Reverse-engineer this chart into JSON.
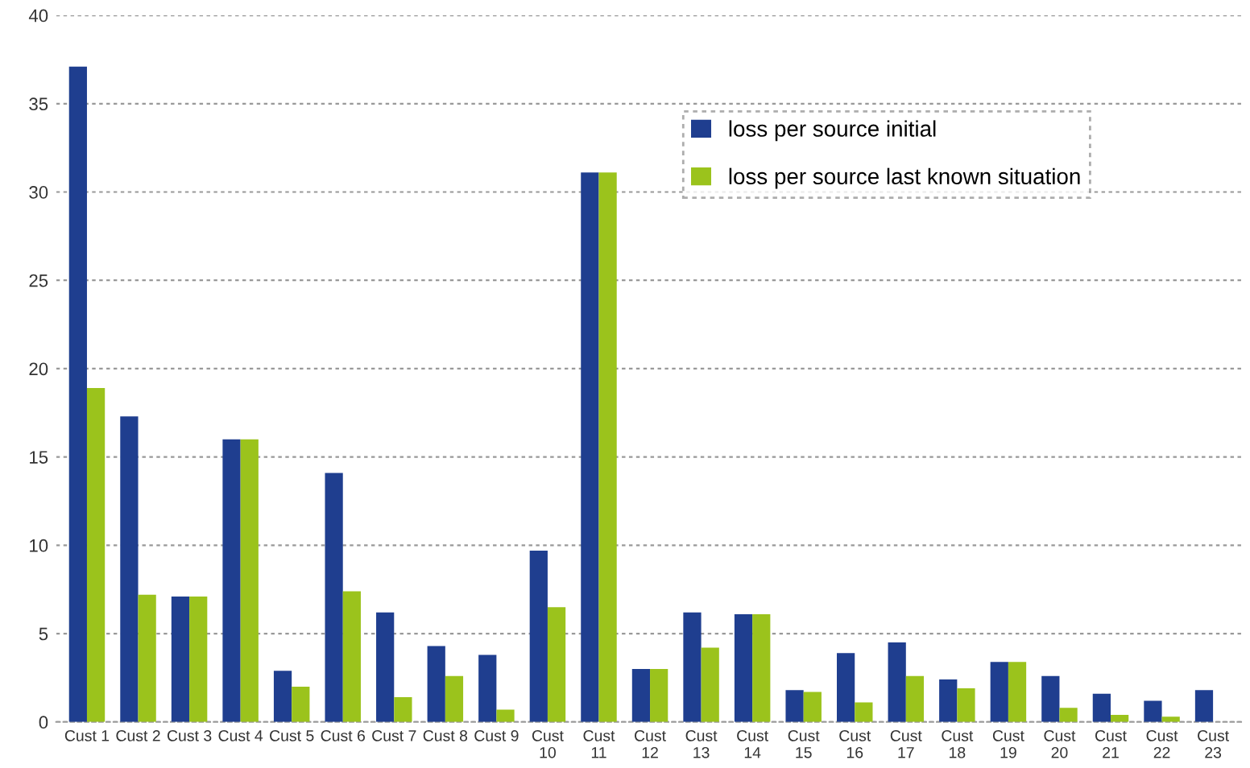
{
  "chart_data": {
    "type": "bar",
    "categories": [
      "Cust 1",
      "Cust 2",
      "Cust 3",
      "Cust 4",
      "Cust 5",
      "Cust 6",
      "Cust 7",
      "Cust 8",
      "Cust 9",
      "Cust 10",
      "Cust 11",
      "Cust 12",
      "Cust 13",
      "Cust 14",
      "Cust 15",
      "Cust 16",
      "Cust 17",
      "Cust 18",
      "Cust 19",
      "Cust 20",
      "Cust 21",
      "Cust 22",
      "Cust 23"
    ],
    "series": [
      {
        "name": "loss per source initial",
        "color": "#1f3e8f",
        "values": [
          37.1,
          17.3,
          7.1,
          16,
          2.9,
          14.1,
          6.2,
          4.3,
          3.8,
          9.7,
          31.1,
          3.0,
          6.2,
          6.1,
          1.8,
          3.9,
          4.5,
          2.4,
          3.4,
          2.6,
          1.6,
          1.2,
          1.8
        ]
      },
      {
        "name": "loss per source last known situation",
        "color": "#9bc31c",
        "values": [
          18.9,
          7.2,
          7.1,
          16,
          2.0,
          7.4,
          1.4,
          2.6,
          0.7,
          6.5,
          31.1,
          3.0,
          4.2,
          6.1,
          1.7,
          1.1,
          2.6,
          1.9,
          3.4,
          0.8,
          0.4,
          0.3,
          null
        ]
      }
    ],
    "ylim": [
      0,
      40
    ],
    "yticks": [
      0,
      5,
      10,
      15,
      20,
      25,
      30,
      35,
      40
    ],
    "grid": "y",
    "legend": "top right"
  }
}
